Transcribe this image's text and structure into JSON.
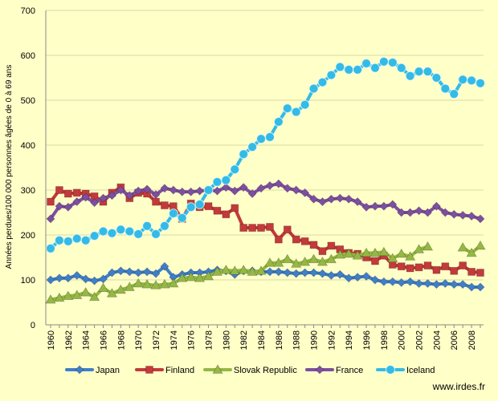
{
  "chart_data": {
    "type": "line",
    "title": "",
    "xlabel": "",
    "ylabel": "Années perdues/100 000 personnes âgées de 0 à 69 ans",
    "ylim": [
      0,
      700
    ],
    "yticks": [
      0,
      100,
      200,
      300,
      400,
      500,
      600,
      700
    ],
    "xlim": [
      1960,
      2009
    ],
    "xtick_labels": [
      "1960",
      "1962",
      "1964",
      "1966",
      "1968",
      "1970",
      "1972",
      "1974",
      "1976",
      "1978",
      "1980",
      "1982",
      "1984",
      "1986",
      "1988",
      "1990",
      "1992",
      "1994",
      "1996",
      "1998",
      "2000",
      "2002",
      "2004",
      "2006",
      "2008"
    ],
    "grid": "horizontal",
    "legend_position": "bottom",
    "x": [
      1960,
      1961,
      1962,
      1963,
      1964,
      1965,
      1966,
      1967,
      1968,
      1969,
      1970,
      1971,
      1972,
      1973,
      1974,
      1975,
      1976,
      1977,
      1978,
      1979,
      1980,
      1981,
      1982,
      1983,
      1984,
      1985,
      1986,
      1987,
      1988,
      1989,
      1990,
      1991,
      1992,
      1993,
      1994,
      1995,
      1996,
      1997,
      1998,
      1999,
      2000,
      2001,
      2002,
      2003,
      2004,
      2005,
      2006,
      2007,
      2008,
      2009
    ],
    "series": [
      {
        "name": "Japan",
        "color": "#3f7fc9",
        "marker": "diamond",
        "values": [
          100,
          104,
          104,
          110,
          102,
          98,
          102,
          116,
          120,
          118,
          116,
          118,
          114,
          130,
          106,
          112,
          116,
          116,
          118,
          122,
          120,
          112,
          120,
          120,
          118,
          118,
          118,
          116,
          114,
          116,
          116,
          114,
          110,
          112,
          104,
          106,
          108,
          100,
          96,
          96,
          94,
          96,
          92,
          92,
          90,
          92,
          90,
          90,
          84,
          84
        ]
      },
      {
        "name": "Finland",
        "color": "#c33a3a",
        "marker": "square",
        "values": [
          274,
          300,
          292,
          294,
          292,
          286,
          274,
          294,
          306,
          282,
          294,
          292,
          274,
          266,
          264,
          236,
          270,
          262,
          264,
          254,
          246,
          260,
          216,
          216,
          216,
          218,
          190,
          212,
          190,
          186,
          178,
          164,
          176,
          168,
          160,
          158,
          150,
          142,
          154,
          134,
          130,
          126,
          128,
          132,
          122,
          130,
          120,
          132,
          118,
          116
        ]
      },
      {
        "name": "Slovak Republic",
        "color": "#95b845",
        "marker": "triangle",
        "values": [
          56,
          60,
          64,
          66,
          72,
          62,
          82,
          70,
          78,
          84,
          92,
          90,
          88,
          90,
          92,
          104,
          106,
          104,
          108,
          118,
          122,
          120,
          122,
          118,
          120,
          138,
          138,
          146,
          136,
          140,
          146,
          140,
          146,
          156,
          158,
          154,
          160,
          160,
          162,
          148,
          158,
          152,
          168,
          174,
          null,
          null,
          null,
          172,
          160,
          176
        ]
      },
      {
        "name": "France",
        "color": "#7d4fa0",
        "marker": "diamond",
        "values": [
          236,
          264,
          262,
          274,
          284,
          272,
          282,
          288,
          300,
          288,
          298,
          302,
          290,
          304,
          300,
          296,
          296,
          298,
          300,
          298,
          306,
          298,
          306,
          292,
          304,
          310,
          314,
          304,
          300,
          294,
          280,
          274,
          280,
          282,
          280,
          274,
          262,
          264,
          264,
          268,
          250,
          250,
          254,
          250,
          264,
          250,
          246,
          244,
          242,
          236
        ]
      },
      {
        "name": "Iceland",
        "color": "#33bbe6",
        "marker": "circle",
        "values": [
          170,
          188,
          186,
          192,
          188,
          198,
          208,
          204,
          212,
          208,
          202,
          220,
          202,
          220,
          248,
          238,
          262,
          268,
          300,
          318,
          322,
          346,
          380,
          396,
          414,
          418,
          452,
          482,
          474,
          490,
          526,
          540,
          556,
          574,
          568,
          568,
          582,
          572,
          586,
          584,
          572,
          554,
          564,
          564,
          550,
          526,
          514,
          546,
          544,
          538
        ]
      }
    ]
  },
  "source_note": "www.irdes.fr"
}
